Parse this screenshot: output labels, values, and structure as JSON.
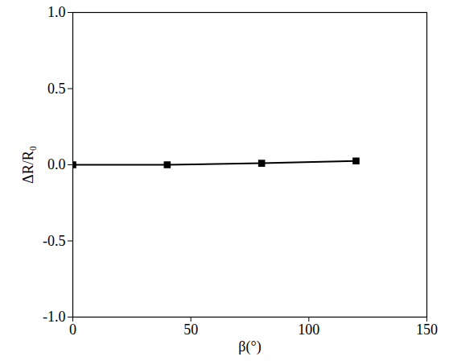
{
  "chart_data": {
    "type": "line",
    "x": [
      0,
      40,
      80,
      120
    ],
    "values": [
      0,
      0,
      0.01,
      0.025
    ],
    "color": "#000000",
    "marker": "square",
    "xlabel": "β(°)",
    "ylabel": "ΔR/R₀",
    "xlim": [
      0,
      150
    ],
    "xticks": [
      0,
      50,
      100,
      150
    ],
    "ylim": [
      -1,
      1
    ],
    "yticks": [
      {
        "value": -1,
        "label": "-1.0"
      },
      {
        "value": -0.5,
        "label": "-0.5"
      },
      {
        "value": 0,
        "label": "0.0"
      },
      {
        "value": 0.5,
        "label": "0.5"
      },
      {
        "value": 1,
        "label": "1.0"
      }
    ],
    "grid": false
  }
}
